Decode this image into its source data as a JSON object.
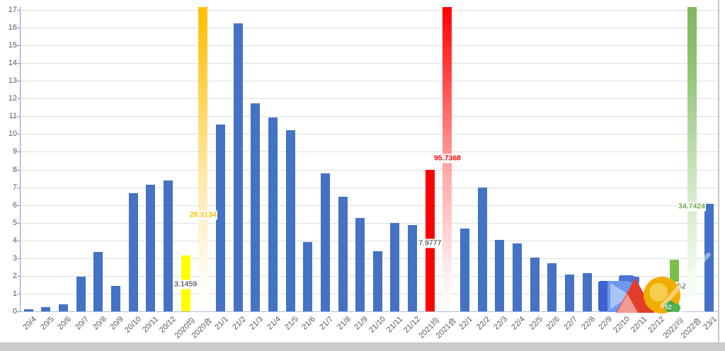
{
  "chart_data": {
    "type": "bar",
    "title": "",
    "xlabel": "",
    "ylabel": "",
    "ylim": [
      0,
      17
    ],
    "grid": true,
    "legend": false,
    "y_ticks": [
      0,
      1,
      2,
      3,
      4,
      5,
      6,
      7,
      8,
      9,
      10,
      11,
      12,
      13,
      14,
      15,
      16,
      17
    ],
    "categories": [
      "20/4",
      "20/5",
      "20/6",
      "20/7",
      "20/8",
      "20/9",
      "20/10",
      "20/11",
      "20/12",
      "2020均",
      "2020合",
      "21/1",
      "21/2",
      "21/3",
      "21/4",
      "21/5",
      "21/6",
      "21/7",
      "21/8",
      "21/9",
      "21/10",
      "21/11",
      "21/12",
      "2021均",
      "2021合",
      "22/1",
      "22/2",
      "22/3",
      "22/4",
      "22/5",
      "22/6",
      "22/7",
      "22/8",
      "22/9",
      "22/10",
      "22/11",
      "22/12",
      "2022均",
      "2022合",
      "23/1"
    ],
    "values": [
      0.12,
      0.23,
      0.4,
      1.95,
      3.36,
      1.42,
      6.65,
      7.14,
      7.38,
      3.1459,
      28.3134,
      10.55,
      16.25,
      11.72,
      10.93,
      10.22,
      3.9,
      7.8,
      6.45,
      5.25,
      3.39,
      5.0,
      4.85,
      7.9777,
      95.7368,
      4.68,
      7.0,
      4.05,
      3.82,
      3.05,
      2.7,
      2.07,
      2.15,
      1.48,
      null,
      null,
      null,
      2.8952,
      34.7424,
      6.05
    ],
    "values_note": "22/10, 22/11, 22/12 bars are obscured by a logo watermark; overflow bars (合 totals) exceed the 0-17 axis and are drawn as gradient columns clipped at the plot top",
    "bar_styles": [
      "blue",
      "blue",
      "blue",
      "blue",
      "blue",
      "blue",
      "blue",
      "blue",
      "blue",
      "yellow",
      "gold_overflow",
      "blue",
      "blue",
      "blue",
      "blue",
      "blue",
      "blue",
      "blue",
      "blue",
      "blue",
      "blue",
      "blue",
      "blue",
      "red",
      "red_overflow",
      "blue",
      "blue",
      "blue",
      "blue",
      "blue",
      "blue",
      "blue",
      "blue",
      "blue",
      "blue",
      "blue",
      "blue",
      "green",
      "green_overflow",
      "blue"
    ],
    "colors": {
      "default_bar": "#4472C4",
      "yearly_avg_2020": "#FFFF00",
      "yearly_total_2020": "#FFC000",
      "yearly_avg_2021": "#FF0000",
      "yearly_total_2021": "#FF0000",
      "yearly_avg_2022": "#7CBF4D",
      "yearly_total_2022": "#70AD47"
    },
    "data_labels": [
      {
        "index": 9,
        "text": "3.1459",
        "color": "#262626",
        "bold": false,
        "y_anchor": 1.52
      },
      {
        "index": 10,
        "text": "28.3134",
        "color": "#FFC000",
        "bold": true,
        "y_anchor": 5.42
      },
      {
        "index": 23,
        "text": "7.9777",
        "color": "#262626",
        "bold": false,
        "y_anchor": 3.83
      },
      {
        "index": 24,
        "text": "95.7368",
        "color": "#FF0000",
        "bold": true,
        "y_anchor": 8.62
      },
      {
        "index": 37,
        "text": "2.8952",
        "color": "#262626",
        "bold": false,
        "y_anchor": 1.4
      },
      {
        "index": 38,
        "text": "34.7424",
        "color": "#70AD47",
        "bold": true,
        "y_anchor": 5.92
      }
    ]
  },
  "watermark": {
    "logo_badge_text": "02",
    "logo_shapes": [
      "dark-blue-case",
      "blue-square",
      "light-blue-triangle",
      "red-mountain-triangle",
      "pink-inner-triangle",
      "yellow-sun-circle",
      "green-badge"
    ]
  }
}
